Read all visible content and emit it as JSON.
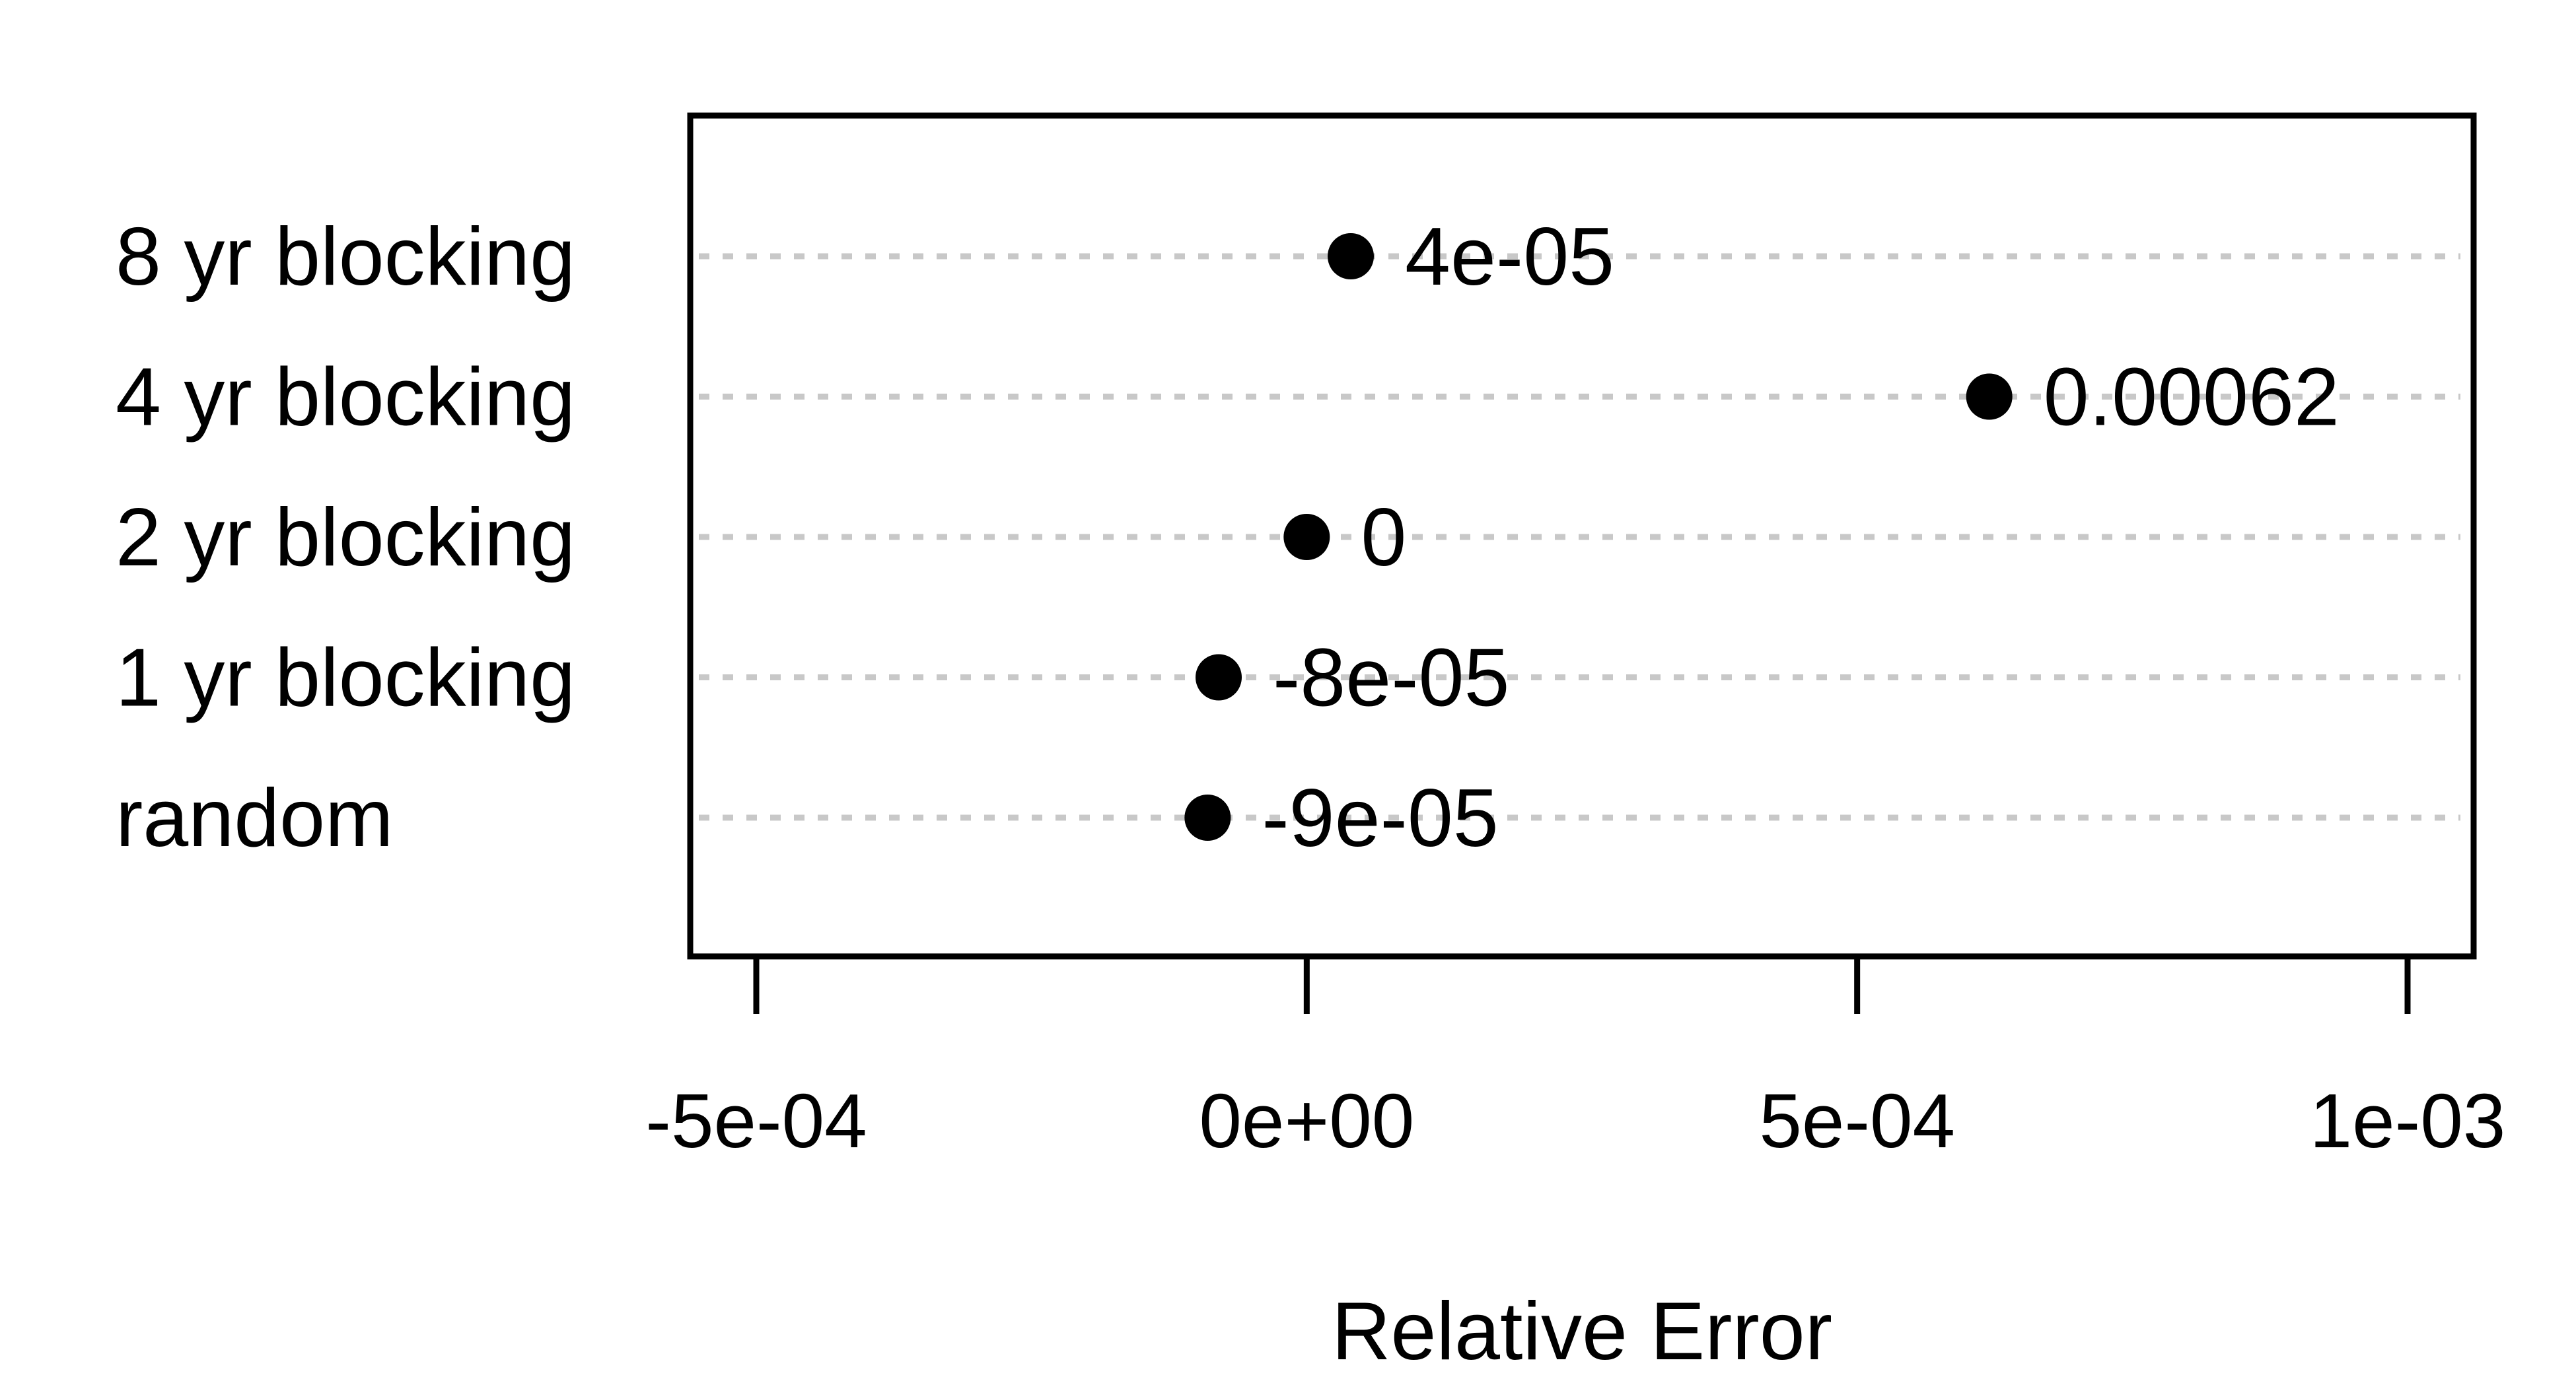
{
  "chart_data": {
    "type": "scatter",
    "xlabel": "Relative Error",
    "ylabel": "",
    "title": "",
    "categories": [
      "8 yr blocking",
      "4 yr blocking",
      "2 yr blocking",
      "1 yr blocking",
      "random"
    ],
    "series": [
      {
        "values": [
          4e-05,
          0.00062,
          0,
          -8e-05,
          -9e-05
        ],
        "labels": [
          "4e-05",
          "0.00062",
          "0",
          "-8e-05",
          "-9e-05"
        ]
      }
    ],
    "xlim": [
      -0.00056,
      0.00106
    ],
    "xticks": [
      -0.0005,
      0,
      0.0005,
      0.001
    ],
    "xtick_labels": [
      "-5e-04",
      "0e+00",
      "5e-04",
      "1e-03"
    ],
    "grid": "horizontal dotted",
    "colors": {
      "points": "#000000",
      "grid": "#c8c8c8",
      "frame": "#000000"
    }
  }
}
